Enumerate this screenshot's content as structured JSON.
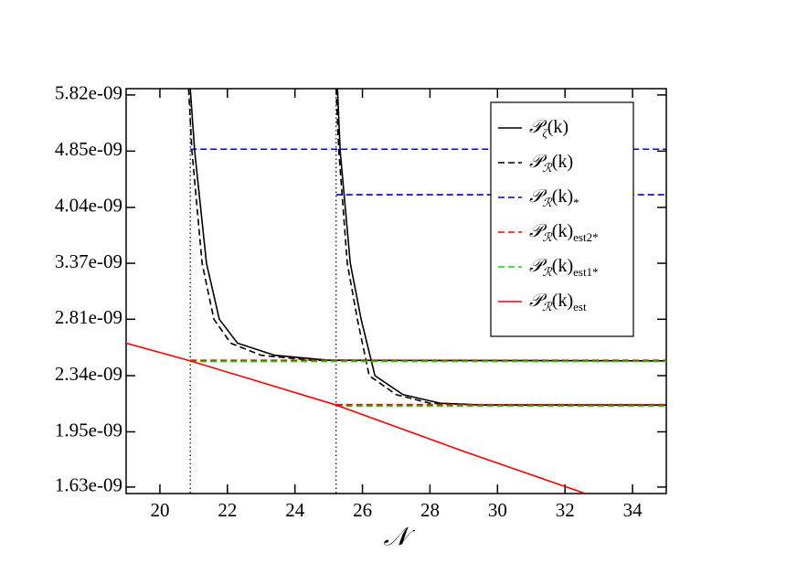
{
  "chart_data": {
    "type": "line",
    "x_label": "𝒩",
    "xlim": [
      19,
      35
    ],
    "xticks": [
      20,
      22,
      24,
      26,
      28,
      30,
      32,
      34
    ],
    "ylim": [
      1.596e-09,
      5.94e-09
    ],
    "log_y": true,
    "yticks": [
      {
        "value": 1.63e-09,
        "label": "1.63e-09"
      },
      {
        "value": 1.95e-09,
        "label": "1.95e-09"
      },
      {
        "value": 2.34e-09,
        "label": "2.34e-09"
      },
      {
        "value": 2.81e-09,
        "label": "2.81e-09"
      },
      {
        "value": 3.37e-09,
        "label": "3.37e-09"
      },
      {
        "value": 4.04e-09,
        "label": "4.04e-09"
      },
      {
        "value": 4.85e-09,
        "label": "4.85e-09"
      },
      {
        "value": 5.82e-09,
        "label": "5.82e-09"
      }
    ],
    "vlines": [
      20.9,
      25.22
    ],
    "legend": "upper right",
    "series": [
      {
        "name": [
          "𝒫",
          "ζ",
          "(k)",
          ""
        ],
        "color": "#000000",
        "dash": "solid",
        "x": [
          20.9,
          21.03,
          21.38,
          21.76,
          22.3,
          23.4,
          25,
          35,
          null,
          25.26,
          25.34,
          25.64,
          25.96,
          26.37,
          27.2,
          28.3,
          29.5,
          35
        ],
        "values": [
          5.94e-09,
          4.85e-09,
          3.37e-09,
          2.81e-09,
          2.6e-09,
          2.5e-09,
          2.46e-09,
          2.455e-09,
          null,
          5.94e-09,
          4.85e-09,
          3.37e-09,
          2.81e-09,
          2.34e-09,
          2.2e-09,
          2.14e-09,
          2.128e-09,
          2.127e-09
        ]
      },
      {
        "name": [
          "𝒫",
          "ℛ",
          "(k)",
          ""
        ],
        "color": "#000000",
        "dash": "dashed",
        "x": [
          20.85,
          20.95,
          21.25,
          21.6,
          22.1,
          23.0,
          24.5,
          35,
          null,
          25.22,
          25.3,
          25.55,
          25.85,
          26.2,
          27,
          28,
          29.5,
          35
        ],
        "values": [
          5.94e-09,
          4.85e-09,
          3.37e-09,
          2.81e-09,
          2.6e-09,
          2.5e-09,
          2.46e-09,
          2.455e-09,
          null,
          5.94e-09,
          4.85e-09,
          3.37e-09,
          2.81e-09,
          2.34e-09,
          2.2e-09,
          2.14e-09,
          2.128e-09,
          2.127e-09
        ]
      },
      {
        "name": [
          "𝒫",
          "ℛ",
          "(k)",
          "*"
        ],
        "color": "#0000cc",
        "dash": "dashed",
        "x": [
          20.9,
          35,
          null,
          25.22,
          35
        ],
        "values": [
          4.88e-09,
          4.88e-09,
          null,
          4.21e-09,
          4.21e-09
        ]
      },
      {
        "name": [
          "𝒫",
          "ℛ",
          "(k)",
          "est2*"
        ],
        "color": "#ff0000",
        "dash": "dashed",
        "x": [
          20.9,
          35,
          null,
          25.22,
          35
        ],
        "values": [
          2.46e-09,
          2.46e-09,
          null,
          2.13e-09,
          2.13e-09
        ]
      },
      {
        "name": [
          "𝒫",
          "ℛ",
          "(k)",
          "est1*"
        ],
        "color": "#00dd00",
        "dash": "dashed",
        "x": [
          20.9,
          35,
          null,
          25.22,
          35
        ],
        "values": [
          2.45e-09,
          2.45e-09,
          null,
          2.12e-09,
          2.12e-09
        ]
      },
      {
        "name": [
          "𝒫",
          "ℛ",
          "(k)",
          "est"
        ],
        "color": "#ff0000",
        "dash": "solid",
        "x": [
          19,
          20.9,
          25.22,
          29,
          32.6
        ],
        "values": [
          2.6e-09,
          2.455e-09,
          2.127e-09,
          1.83e-09,
          1.596e-09
        ]
      }
    ]
  }
}
